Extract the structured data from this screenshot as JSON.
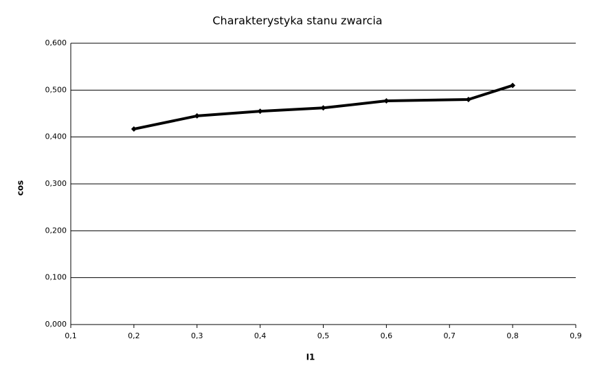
{
  "chart_data": {
    "type": "line",
    "title": "Charakterystyka stanu zwarcia",
    "x_label": "I1",
    "y_label": "cos",
    "x": [
      0.2,
      0.3,
      0.4,
      0.5,
      0.6,
      0.73,
      0.8
    ],
    "values": [
      0.417,
      0.445,
      0.455,
      0.462,
      0.477,
      0.48,
      0.51
    ],
    "color": "#000000",
    "xlim": [
      0.1,
      0.9
    ],
    "xticks": [
      {
        "value": 0.1,
        "label": "0,1"
      },
      {
        "value": 0.2,
        "label": "0,2"
      },
      {
        "value": 0.3,
        "label": "0,3"
      },
      {
        "value": 0.4,
        "label": "0,4"
      },
      {
        "value": 0.5,
        "label": "0,5"
      },
      {
        "value": 0.6,
        "label": "0,6"
      },
      {
        "value": 0.7,
        "label": "0,7"
      },
      {
        "value": 0.8,
        "label": "0,8"
      },
      {
        "value": 0.9,
        "label": "0,9"
      }
    ],
    "ylim": [
      0,
      0.6
    ],
    "yticks": [
      {
        "value": 0,
        "label": "0,000"
      },
      {
        "value": 0.1,
        "label": "0,100"
      },
      {
        "value": 0.2,
        "label": "0,200"
      },
      {
        "value": 0.3,
        "label": "0,300"
      },
      {
        "value": 0.4,
        "label": "0,400"
      },
      {
        "value": 0.5,
        "label": "0,500"
      },
      {
        "value": 0.6,
        "label": "0,600"
      }
    ],
    "grid": true
  }
}
